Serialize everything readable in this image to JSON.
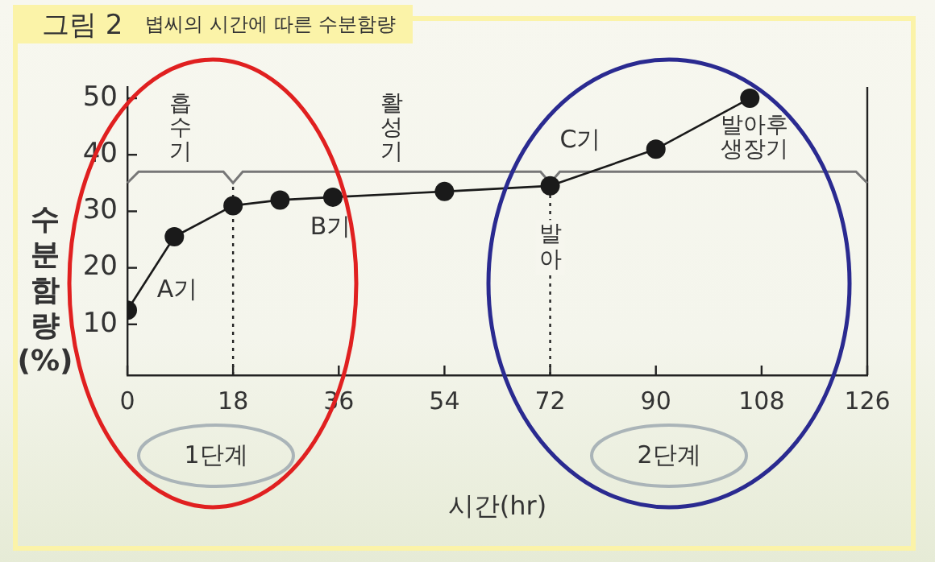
{
  "chart_data": {
    "type": "line",
    "title": "그림 2",
    "subtitle": "볍씨의 시간에 따른 수분함량",
    "xlabel": "시간(hr)",
    "ylabel": "수분함량(%)",
    "x": [
      0,
      8,
      18,
      26,
      35,
      54,
      72,
      90,
      106
    ],
    "series": [
      {
        "color": "#1a1a1a",
        "values": [
          12.5,
          25.5,
          31,
          32,
          32.5,
          33.5,
          34.5,
          41,
          50
        ]
      }
    ],
    "xlim": [
      0,
      126
    ],
    "xticks": [
      0,
      18,
      36,
      54,
      72,
      90,
      108,
      126
    ],
    "ylim": [
      1,
      52
    ],
    "yticks": [
      10,
      20,
      30,
      40,
      50
    ],
    "grid": false,
    "legend": false,
    "marker": "circle",
    "line_style": "solid",
    "ref_lines": [
      {
        "axis": "x",
        "value": 18,
        "line_style": "dotted"
      },
      {
        "axis": "x",
        "value": 72,
        "label": "발아",
        "line_style": "dotted"
      },
      {
        "axis": "y",
        "value": 37,
        "color": "#777777",
        "line_style": "solid"
      }
    ],
    "annotations": [
      "흡수기",
      "활성기",
      "발아후 생장기",
      "A기",
      "B기",
      "C기",
      "1단계",
      "2단계"
    ]
  }
}
